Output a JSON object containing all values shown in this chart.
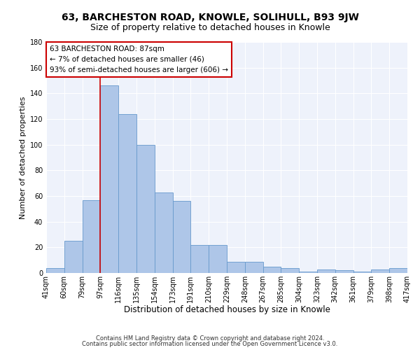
{
  "title": "63, BARCHESTON ROAD, KNOWLE, SOLIHULL, B93 9JW",
  "subtitle": "Size of property relative to detached houses in Knowle",
  "xlabel": "Distribution of detached houses by size in Knowle",
  "ylabel": "Number of detached properties",
  "bar_labels": [
    "41sqm",
    "60sqm",
    "79sqm",
    "97sqm",
    "116sqm",
    "135sqm",
    "154sqm",
    "173sqm",
    "191sqm",
    "210sqm",
    "229sqm",
    "248sqm",
    "267sqm",
    "285sqm",
    "304sqm",
    "323sqm",
    "342sqm",
    "361sqm",
    "379sqm",
    "398sqm",
    "417sqm"
  ],
  "bar_values": [
    4,
    25,
    57,
    146,
    124,
    100,
    63,
    56,
    22,
    22,
    9,
    9,
    5,
    4,
    1,
    3,
    2,
    1,
    3,
    4
  ],
  "bar_color": "#aec6e8",
  "bar_edge_color": "#6699cc",
  "background_color": "#eef2fb",
  "grid_color": "#ffffff",
  "ylim": [
    0,
    180
  ],
  "yticks": [
    0,
    20,
    40,
    60,
    80,
    100,
    120,
    140,
    160,
    180
  ],
  "property_label": "63 BARCHESTON ROAD: 87sqm",
  "annotation_line1": "← 7% of detached houses are smaller (46)",
  "annotation_line2": "93% of semi-detached houses are larger (606) →",
  "vline_color": "#cc0000",
  "annotation_box_edge_color": "#cc0000",
  "footer1": "Contains HM Land Registry data © Crown copyright and database right 2024.",
  "footer2": "Contains public sector information licensed under the Open Government Licence v3.0.",
  "title_fontsize": 10,
  "subtitle_fontsize": 9,
  "xlabel_fontsize": 8.5,
  "ylabel_fontsize": 8,
  "tick_fontsize": 7,
  "footer_fontsize": 6,
  "annotation_fontsize": 7.5
}
